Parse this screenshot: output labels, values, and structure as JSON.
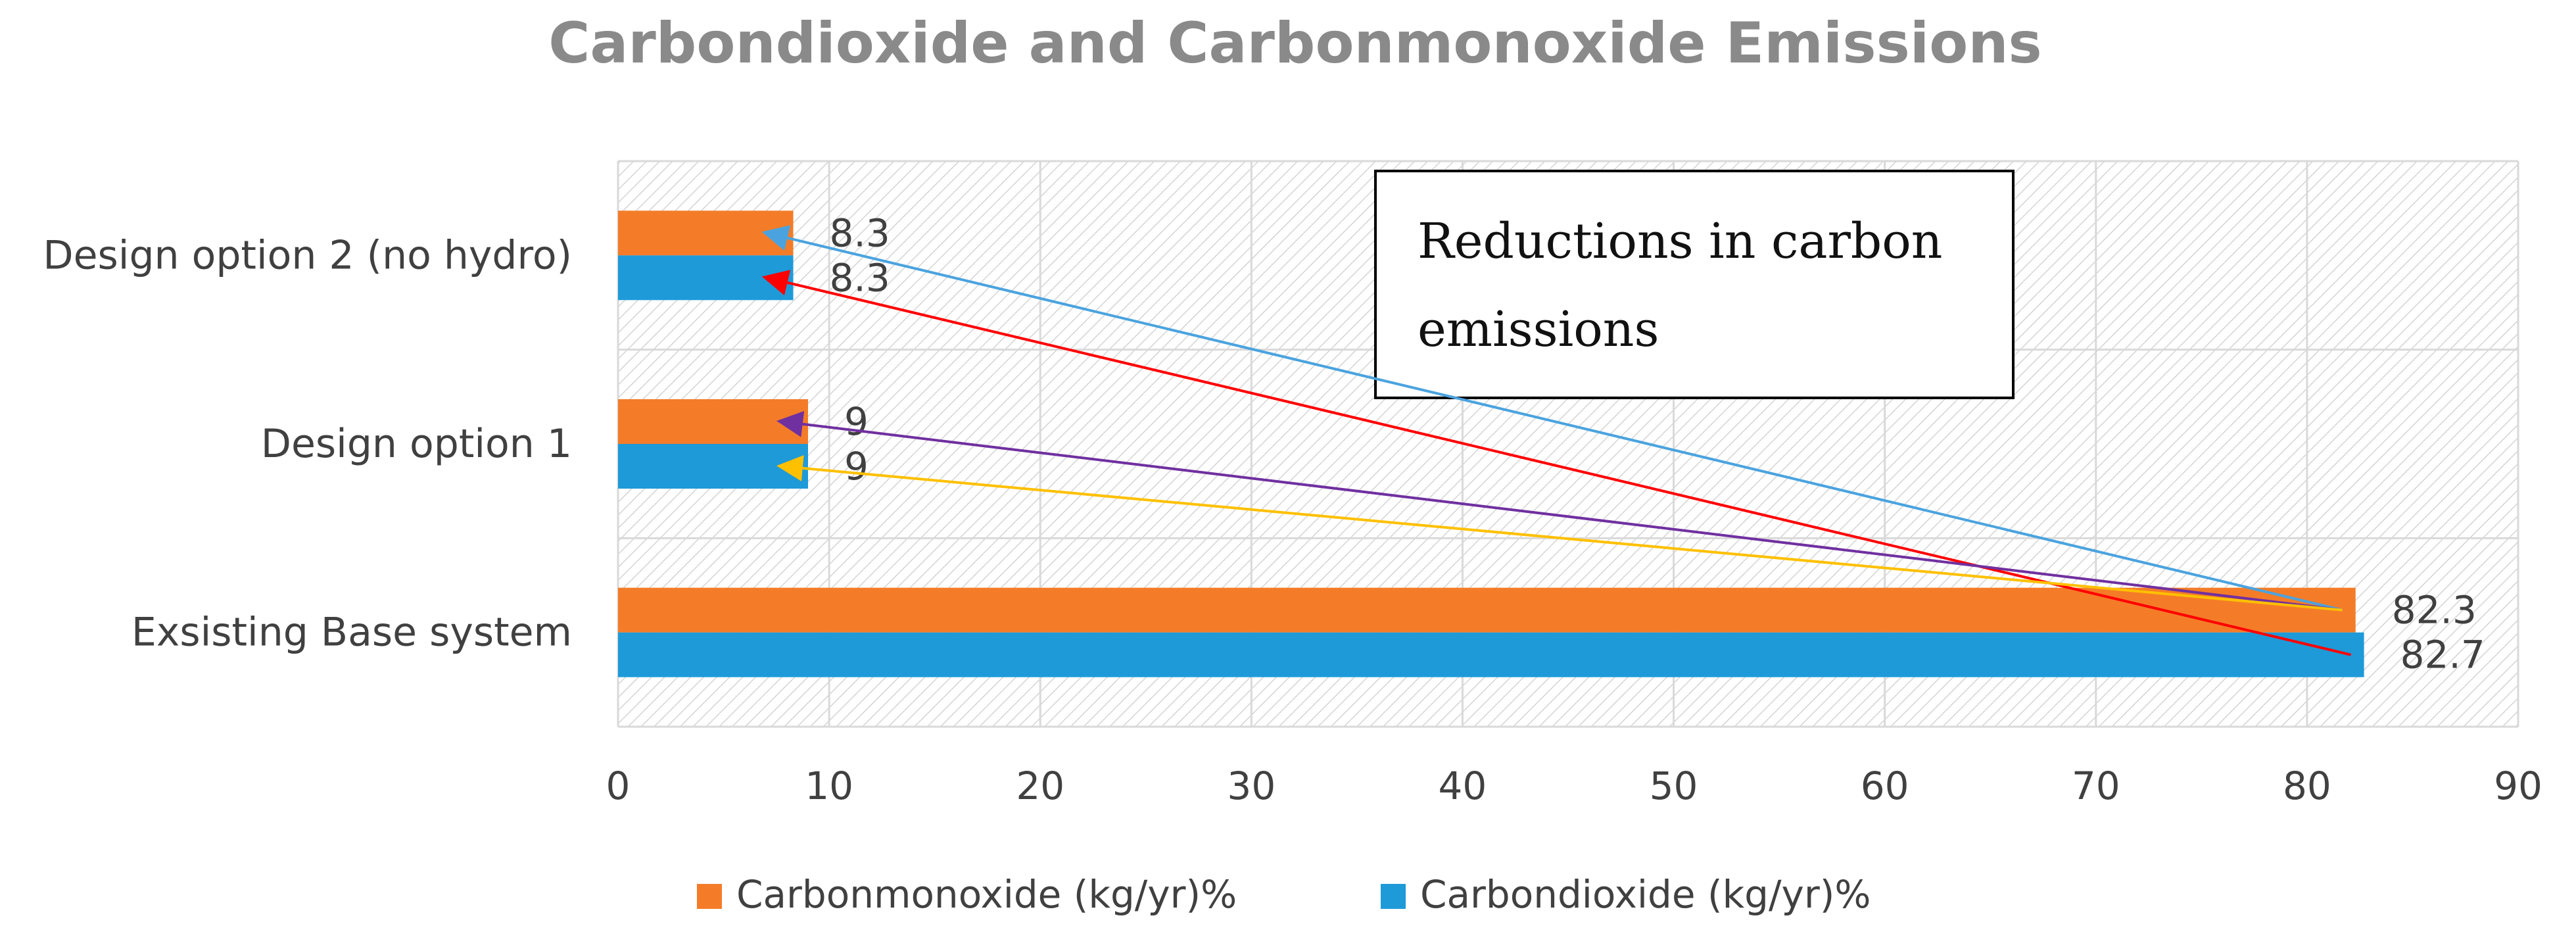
{
  "chart_data": {
    "type": "bar",
    "orientation": "horizontal",
    "title": "Carbondioxide and Carbonmonoxide Emissions",
    "categories": [
      "Exsisting Base system",
      "Design option 1",
      "Design option 2 (no hydro)"
    ],
    "series": [
      {
        "name": "Carbonmonoxide (kg/yr)%",
        "color": "#F47C28",
        "values": [
          82.3,
          9,
          8.3
        ],
        "labels": [
          "82.3",
          "9",
          "8.3"
        ]
      },
      {
        "name": "Carbondioxide (kg/yr)%",
        "color": "#1E9AD8",
        "values": [
          82.7,
          9,
          8.3
        ],
        "labels": [
          "82.7",
          "9",
          "8.3"
        ]
      }
    ],
    "xlim": [
      0,
      90
    ],
    "x_ticks": [
      "0",
      "10",
      "20",
      "30",
      "40",
      "50",
      "60",
      "70",
      "80",
      "90"
    ],
    "xlabel": "",
    "ylabel": "",
    "grid": true,
    "plot_background": "hatched",
    "legend_position": "bottom",
    "annotation": {
      "text_lines": [
        "Reductions in carbon",
        "emissions"
      ]
    },
    "arrows": [
      {
        "color": "#4AA3DF",
        "from": {
          "category": "Exsisting Base system",
          "value": 82.3
        },
        "to": {
          "category": "Design option 2 (no hydro)",
          "value": 8.3
        }
      },
      {
        "color": "#FF0000",
        "from": {
          "category": "Exsisting Base system",
          "value": 82.7
        },
        "to": {
          "category": "Design option 2 (no hydro)",
          "value": 8.3
        }
      },
      {
        "color": "#7030A0",
        "from": {
          "category": "Exsisting Base system",
          "value": 82.3
        },
        "to": {
          "category": "Design option 1",
          "value": 9
        }
      },
      {
        "color": "#FFC000",
        "from": {
          "category": "Exsisting Base system",
          "value": 82.3
        },
        "to": {
          "category": "Design option 1",
          "value": 9
        }
      }
    ]
  }
}
